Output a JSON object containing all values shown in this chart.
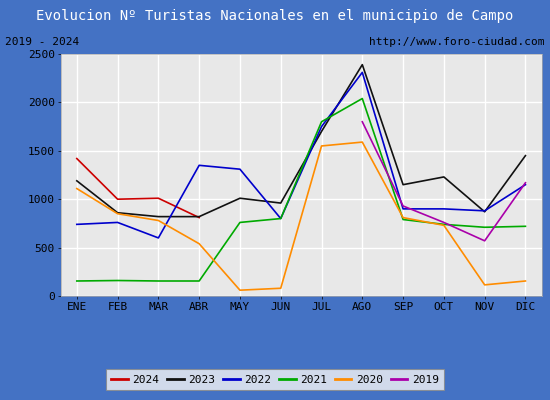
{
  "title": "Evolucion Nº Turistas Nacionales en el municipio de Campo",
  "subtitle_left": "2019 - 2024",
  "subtitle_right": "http://www.foro-ciudad.com",
  "months": [
    "ENE",
    "FEB",
    "MAR",
    "ABR",
    "MAY",
    "JUN",
    "JUL",
    "AGO",
    "SEP",
    "OCT",
    "NOV",
    "DIC"
  ],
  "ylim": [
    0,
    2500
  ],
  "yticks": [
    0,
    500,
    1000,
    1500,
    2000,
    2500
  ],
  "series": [
    {
      "year": "2024",
      "color": "#cc0000",
      "data": [
        1420,
        1000,
        1010,
        810,
        null,
        null,
        null,
        null,
        null,
        null,
        null,
        null
      ]
    },
    {
      "year": "2023",
      "color": "#111111",
      "data": [
        1190,
        860,
        820,
        820,
        1010,
        960,
        1700,
        2390,
        1150,
        1230,
        870,
        1450
      ]
    },
    {
      "year": "2022",
      "color": "#0000cc",
      "data": [
        740,
        760,
        600,
        1350,
        1310,
        800,
        1750,
        2310,
        900,
        900,
        880,
        1150
      ]
    },
    {
      "year": "2021",
      "color": "#00aa00",
      "data": [
        155,
        160,
        155,
        155,
        760,
        800,
        1800,
        2040,
        790,
        740,
        710,
        720
      ]
    },
    {
      "year": "2020",
      "color": "#ff8c00",
      "data": [
        1110,
        850,
        780,
        540,
        60,
        80,
        1550,
        1590,
        810,
        730,
        115,
        155
      ]
    },
    {
      "year": "2019",
      "color": "#aa00aa",
      "data": [
        null,
        null,
        null,
        null,
        null,
        null,
        null,
        1800,
        930,
        760,
        570,
        1170
      ]
    }
  ],
  "title_bg_color": "#4472c4",
  "title_font_color": "#ffffff",
  "plot_bg_color": "#e8e8e8",
  "grid_color": "#ffffff",
  "border_color": "#4472c4",
  "sub_bg_color": "#d4d4d4",
  "legend_bg_color": "#f0f0f0",
  "title_fontsize": 10,
  "subtitle_fontsize": 8,
  "tick_fontsize": 8,
  "legend_fontsize": 8
}
